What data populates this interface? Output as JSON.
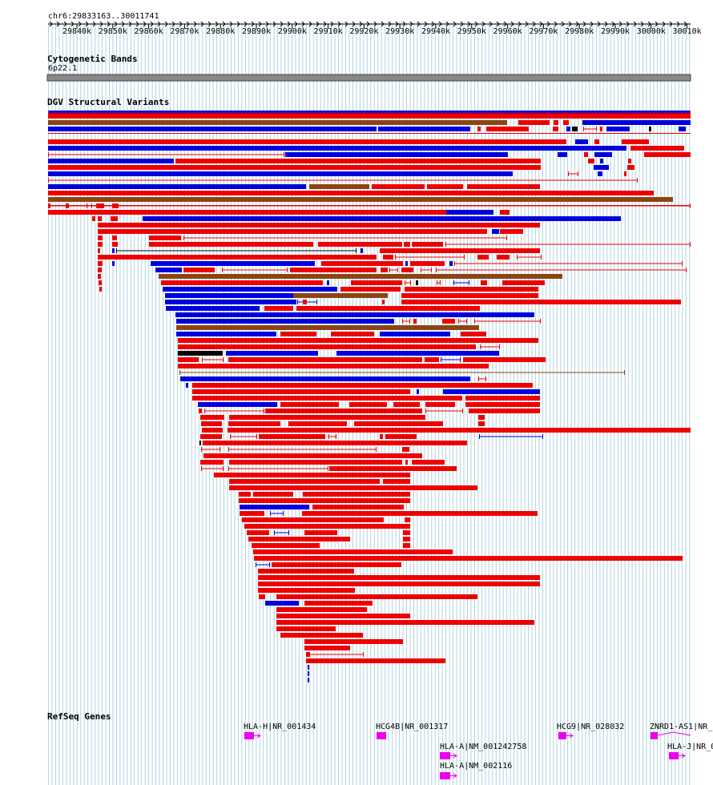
{
  "region": "chr6:29833163..30011741",
  "ruler": {
    "ticks": [
      "29840k",
      "29850k",
      "29860k",
      "29870k",
      "29880k",
      "29890k",
      "29900k",
      "29910k",
      "29920k",
      "29930k",
      "29940k",
      "29950k",
      "29960k",
      "29970k",
      "29980k",
      "29990k",
      "30000k",
      "30010k"
    ]
  },
  "cyto": {
    "title": "Cytogenetic Bands",
    "band": "6p22.1"
  },
  "dgv": {
    "title": "DGV Structural Variants"
  },
  "refseq": {
    "title": "RefSeq Genes",
    "genes": [
      {
        "label": "HLA-H|NR_001434"
      },
      {
        "label": "HCG4B|NR_001317"
      },
      {
        "label": "HLA-A|NM_001242758"
      },
      {
        "label": "HLA-A|NM_002116"
      },
      {
        "label": "HCG9|NR_028032"
      },
      {
        "label": "ZNRD1-AS1|NR_"
      },
      {
        "label": "HLA-J|NR_0"
      }
    ]
  },
  "colors": {
    "gain": "#ee0000",
    "loss": "#0000dd",
    "gainloss": "#8b4513",
    "other": "#000000",
    "gene": "#ee00ee",
    "grid": "#b0d4e2",
    "band": "#888888"
  }
}
